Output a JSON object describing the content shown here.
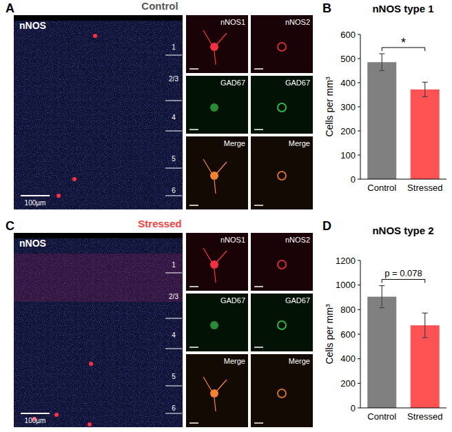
{
  "panel_labels": [
    "A",
    "B",
    "C",
    "D"
  ],
  "images": [
    {
      "title": "Control",
      "main_label": "nNOS",
      "scale_bar": "100µm",
      "layers": [
        "1",
        "2/3",
        "4",
        "5",
        "6"
      ],
      "tiles": [
        "nNOS1",
        "nNOS2",
        "GAD67",
        "GAD67",
        "Merge",
        "Merge"
      ]
    },
    {
      "title": "Stressed",
      "main_label": "nNOS",
      "scale_bar": "100µm",
      "layers": [
        "1",
        "2/3",
        "4",
        "5",
        "6"
      ],
      "tiles": [
        "nNOS1",
        "nNOS2",
        "GAD67",
        "GAD67",
        "Merge",
        "Merge"
      ]
    }
  ],
  "chart_data": [
    {
      "type": "bar",
      "title": "nNOS type 1",
      "y_label": "Cells per mm³",
      "categories": [
        "Control",
        "Stressed"
      ],
      "values": [
        485,
        372
      ],
      "errors": [
        35,
        30
      ],
      "colors": [
        "#808080",
        "#ff5252"
      ],
      "ylim": [
        0,
        600
      ],
      "yticks": [
        0,
        100,
        200,
        300,
        400,
        500,
        600
      ],
      "annotation": "*"
    },
    {
      "type": "bar",
      "title": "nNOS type 2",
      "y_label": "Cells per mm³",
      "categories": [
        "Control",
        "Stressed"
      ],
      "values": [
        905,
        672
      ],
      "errors": [
        90,
        100
      ],
      "colors": [
        "#808080",
        "#ff5252"
      ],
      "ylim": [
        0,
        1200
      ],
      "yticks": [
        0,
        200,
        400,
        600,
        800,
        1000,
        1200
      ],
      "annotation": "p = 0.078"
    }
  ]
}
